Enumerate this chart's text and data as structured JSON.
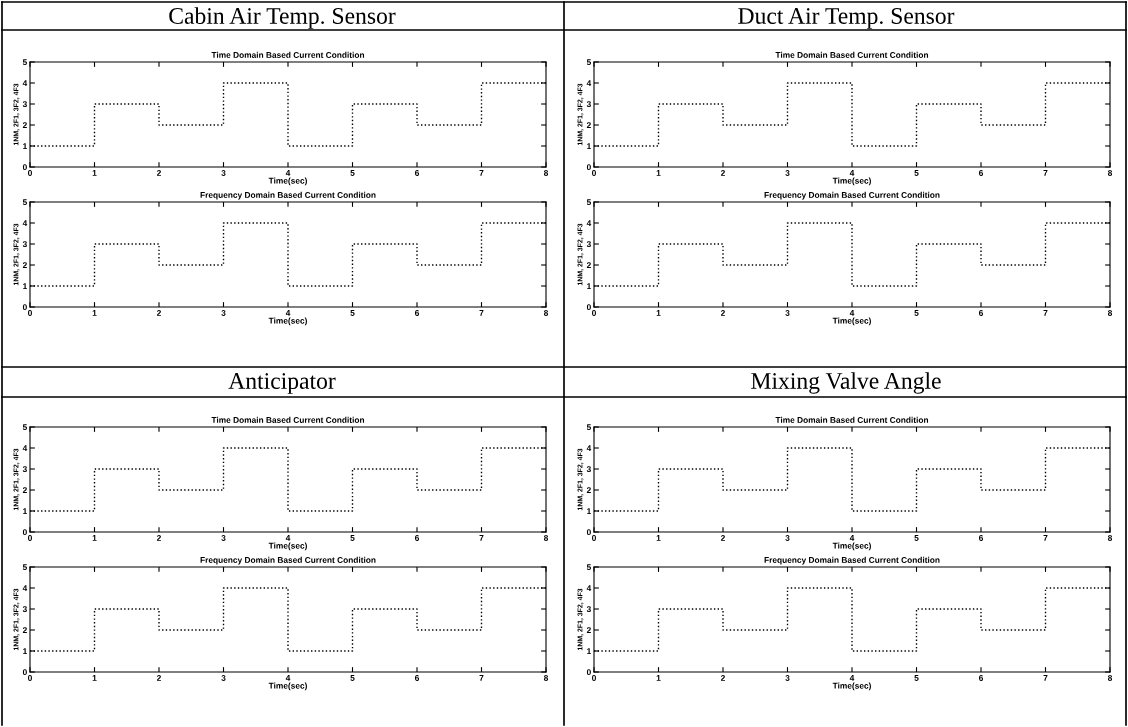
{
  "chart_data": [
    {
      "type": "step",
      "title": "Time Domain Based Current Condition",
      "annotations": [
        "Cabin Air Temp. Sensor"
      ],
      "xlabel": "Time(sec)",
      "ylabel": "1NM, 2F1, 3F2, 4F3",
      "x": [
        0,
        1,
        2,
        3,
        4,
        5,
        6,
        7,
        8
      ],
      "values": [
        1,
        3,
        2,
        4,
        1,
        3,
        2,
        4,
        4
      ],
      "color": "#000000",
      "line_style": "dotted",
      "xlim": [
        0,
        8
      ],
      "ylim": [
        0,
        5
      ],
      "xticks": [
        0,
        1,
        2,
        3,
        4,
        5,
        6,
        7,
        8
      ],
      "yticks": [
        0,
        1,
        2,
        3,
        4,
        5
      ]
    },
    {
      "type": "step",
      "title": "Frequency Domain Based Current Condition",
      "xlabel": "Time(sec)",
      "ylabel": "1NM, 2F1, 3F2, 4F3",
      "x": [
        0,
        1,
        2,
        3,
        4,
        5,
        6,
        7,
        8
      ],
      "values": [
        1,
        3,
        2,
        4,
        1,
        3,
        2,
        4,
        4
      ],
      "color": "#000000",
      "line_style": "dotted",
      "xlim": [
        0,
        8
      ],
      "ylim": [
        0,
        5
      ],
      "xticks": [
        0,
        1,
        2,
        3,
        4,
        5,
        6,
        7,
        8
      ],
      "yticks": [
        0,
        1,
        2,
        3,
        4,
        5
      ]
    },
    {
      "type": "step",
      "title": "Time Domain Based Current Condition",
      "annotations": [
        "Duct Air Temp. Sensor"
      ],
      "xlabel": "Time(sec)",
      "ylabel": "1NM, 2F1, 3F2, 4F3",
      "x": [
        0,
        1,
        2,
        3,
        4,
        5,
        6,
        7,
        8
      ],
      "values": [
        1,
        3,
        2,
        4,
        1,
        3,
        2,
        4,
        4
      ],
      "color": "#000000",
      "line_style": "dotted",
      "xlim": [
        0,
        8
      ],
      "ylim": [
        0,
        5
      ],
      "xticks": [
        0,
        1,
        2,
        3,
        4,
        5,
        6,
        7,
        8
      ],
      "yticks": [
        0,
        1,
        2,
        3,
        4,
        5
      ]
    },
    {
      "type": "step",
      "title": "Frequency Domain Based Current Condition",
      "xlabel": "Time(sec)",
      "ylabel": "1NM, 2F1, 3F2, 4F3",
      "x": [
        0,
        1,
        2,
        3,
        4,
        5,
        6,
        7,
        8
      ],
      "values": [
        1,
        3,
        2,
        4,
        1,
        3,
        2,
        4,
        4
      ],
      "color": "#000000",
      "line_style": "dotted",
      "xlim": [
        0,
        8
      ],
      "ylim": [
        0,
        5
      ],
      "xticks": [
        0,
        1,
        2,
        3,
        4,
        5,
        6,
        7,
        8
      ],
      "yticks": [
        0,
        1,
        2,
        3,
        4,
        5
      ]
    },
    {
      "type": "step",
      "title": "Time Domain Based Current Condition",
      "annotations": [
        "Anticipator"
      ],
      "xlabel": "Time(sec)",
      "ylabel": "1NM, 2F1, 3F2, 4F3",
      "x": [
        0,
        1,
        2,
        3,
        4,
        5,
        6,
        7,
        8
      ],
      "values": [
        1,
        3,
        2,
        4,
        1,
        3,
        2,
        4,
        4
      ],
      "color": "#000000",
      "line_style": "dotted",
      "xlim": [
        0,
        8
      ],
      "ylim": [
        0,
        5
      ],
      "xticks": [
        0,
        1,
        2,
        3,
        4,
        5,
        6,
        7,
        8
      ],
      "yticks": [
        0,
        1,
        2,
        3,
        4,
        5
      ]
    },
    {
      "type": "step",
      "title": "Frequency Domain Based Current Condition",
      "xlabel": "Time(sec)",
      "ylabel": "1NM, 2F1, 3F2, 4F3",
      "x": [
        0,
        1,
        2,
        3,
        4,
        5,
        6,
        7,
        8
      ],
      "values": [
        1,
        3,
        2,
        4,
        1,
        3,
        2,
        4,
        4
      ],
      "color": "#000000",
      "line_style": "dotted",
      "xlim": [
        0,
        8
      ],
      "ylim": [
        0,
        5
      ],
      "xticks": [
        0,
        1,
        2,
        3,
        4,
        5,
        6,
        7,
        8
      ],
      "yticks": [
        0,
        1,
        2,
        3,
        4,
        5
      ]
    },
    {
      "type": "step",
      "title": "Time Domain Based Current Condition",
      "annotations": [
        "Mixing Valve Angle"
      ],
      "xlabel": "Time(sec)",
      "ylabel": "1NM, 2F1, 3F2, 4F3",
      "x": [
        0,
        1,
        2,
        3,
        4,
        5,
        6,
        7,
        8
      ],
      "values": [
        1,
        3,
        2,
        4,
        1,
        3,
        2,
        4,
        4
      ],
      "color": "#000000",
      "line_style": "dotted",
      "xlim": [
        0,
        8
      ],
      "ylim": [
        0,
        5
      ],
      "xticks": [
        0,
        1,
        2,
        3,
        4,
        5,
        6,
        7,
        8
      ],
      "yticks": [
        0,
        1,
        2,
        3,
        4,
        5
      ]
    },
    {
      "type": "step",
      "title": "Frequency Domain Based Current Condition",
      "xlabel": "Time(sec)",
      "ylabel": "1NM, 2F1, 3F2, 4F3",
      "x": [
        0,
        1,
        2,
        3,
        4,
        5,
        6,
        7,
        8
      ],
      "values": [
        1,
        3,
        2,
        4,
        1,
        3,
        2,
        4,
        4
      ],
      "color": "#000000",
      "line_style": "dotted",
      "xlim": [
        0,
        8
      ],
      "ylim": [
        0,
        5
      ],
      "xticks": [
        0,
        1,
        2,
        3,
        4,
        5,
        6,
        7,
        8
      ],
      "yticks": [
        0,
        1,
        2,
        3,
        4,
        5
      ]
    }
  ]
}
